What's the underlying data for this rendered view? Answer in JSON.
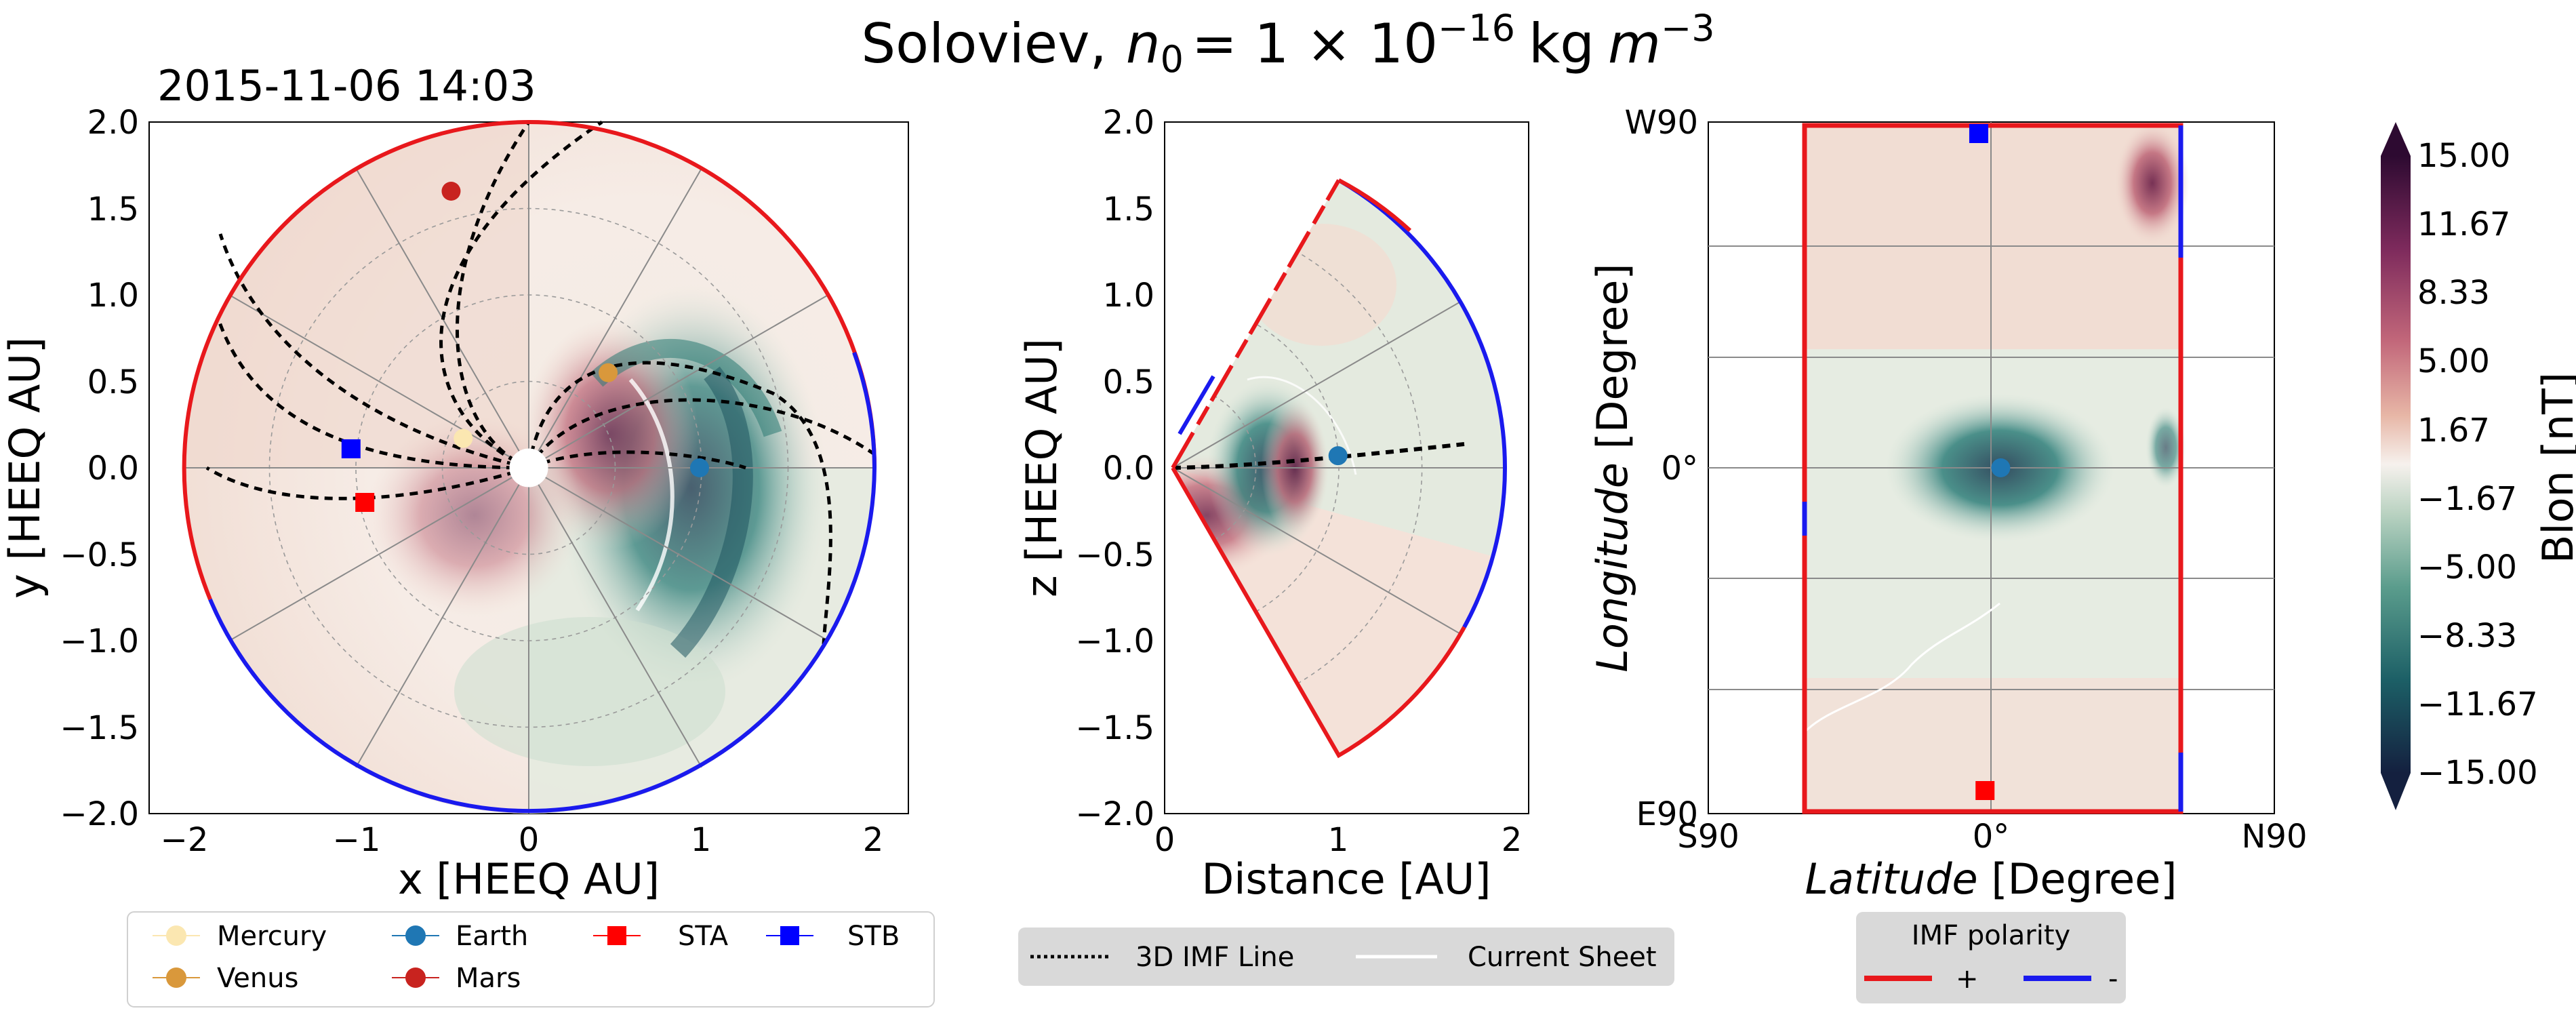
{
  "title": {
    "prefix": "Soloviev,",
    "n_symbol": "n",
    "n_sub": "0",
    "n_eq": "= 1 × 10",
    "n_exp": "−16",
    "units": "kg",
    "m_symbol": "m",
    "m_exp": "−3"
  },
  "timestamp": "2015-11-06 14:03",
  "colors": {
    "red": "#e8181c",
    "blue": "#1a1aee",
    "mercury": "#fbe7b1",
    "venus": "#d9983b",
    "earth": "#1f77b4",
    "mars": "#c8231f",
    "sta": "#ff0000",
    "stb": "#0000ff"
  },
  "chart_data": [
    {
      "type": "scatter",
      "panel": "ecliptic",
      "xlabel": "x [HEEQ AU]",
      "ylabel": "y [HEEQ AU]",
      "xlim": [
        -2.2,
        2.2
      ],
      "ylim": [
        -2.0,
        2.0
      ],
      "xticks": [
        "−2",
        "−1",
        "0",
        "1",
        "2"
      ],
      "yticks": [
        "2.0",
        "1.5",
        "1.0",
        "0.5",
        "0.0",
        "−0.5",
        "−1.0",
        "−1.5",
        "−2.0"
      ],
      "points": [
        {
          "name": "Mercury",
          "x": -0.38,
          "y": 0.17,
          "marker": "circle"
        },
        {
          "name": "Venus",
          "x": 0.46,
          "y": 0.55,
          "marker": "circle"
        },
        {
          "name": "Earth",
          "x": 0.99,
          "y": 0.0,
          "marker": "circle"
        },
        {
          "name": "Mars",
          "x": -0.45,
          "y": 1.6,
          "marker": "circle"
        },
        {
          "name": "STA",
          "x": -0.95,
          "y": -0.2,
          "marker": "square"
        },
        {
          "name": "STB",
          "x": -1.03,
          "y": 0.11,
          "marker": "square"
        }
      ]
    },
    {
      "type": "scatter",
      "panel": "meridional",
      "xlabel": "Distance [AU]",
      "ylabel": "z [HEEQ AU]",
      "xlim": [
        0,
        2.1
      ],
      "ylim": [
        -2.0,
        2.0
      ],
      "xticks": [
        "0",
        "1",
        "2"
      ],
      "yticks": [
        "2.0",
        "1.5",
        "1.0",
        "0.5",
        "0.0",
        "−0.5",
        "−1.0",
        "−1.5",
        "−2.0"
      ],
      "points": [
        {
          "name": "Earth",
          "x": 1.0,
          "y": 0.07,
          "marker": "circle"
        }
      ]
    },
    {
      "type": "scatter",
      "panel": "boundary-map",
      "xlabel_italic": "Latitude",
      "xlabel_rest": "[Degree]",
      "ylabel_italic": "Longitude",
      "ylabel_rest": "[Degree]",
      "xlim": [
        -90,
        90
      ],
      "ylim": [
        -90,
        90
      ],
      "xticks": [
        "S90",
        "0°",
        "N90"
      ],
      "yticks": [
        "W90",
        "0°",
        "E90"
      ],
      "points": [
        {
          "name": "STB",
          "x": -4,
          "y": 87,
          "marker": "square"
        },
        {
          "name": "Earth",
          "x": 3,
          "y": 0,
          "marker": "circle"
        },
        {
          "name": "STA",
          "x": -2,
          "y": -84,
          "marker": "square"
        }
      ]
    },
    {
      "type": "colorbar",
      "label": "Blon [nT]",
      "range": [
        -15,
        15
      ],
      "ticks": [
        "15.00",
        "11.67",
        "8.33",
        "5.00",
        "1.67",
        "−1.67",
        "−5.00",
        "−8.33",
        "−11.67",
        "−15.00"
      ]
    }
  ],
  "legend_bodies": [
    {
      "label": "Mercury",
      "marker": "circle",
      "color_key": "mercury"
    },
    {
      "label": "Venus",
      "marker": "circle",
      "color_key": "venus"
    },
    {
      "label": "Earth",
      "marker": "circle",
      "color_key": "earth"
    },
    {
      "label": "Mars",
      "marker": "circle",
      "color_key": "mars"
    },
    {
      "label": "STA",
      "marker": "square",
      "color_key": "sta"
    },
    {
      "label": "STB",
      "marker": "square",
      "color_key": "stb"
    }
  ],
  "legend_lines": {
    "imf_line": "3D IMF Line",
    "current_sheet": "Current Sheet"
  },
  "legend_polarity": {
    "title": "IMF polarity",
    "plus": "+",
    "minus": "-"
  }
}
